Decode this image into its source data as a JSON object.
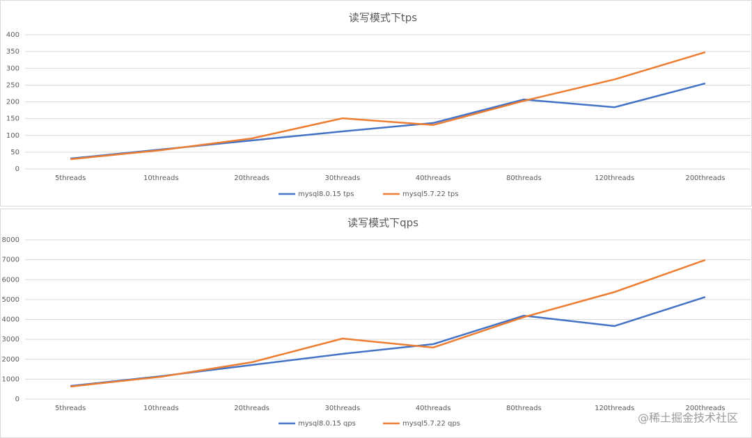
{
  "chart_data": [
    {
      "type": "line",
      "title": "读写模式下tps",
      "categories": [
        "5threads",
        "10threads",
        "20threads",
        "30threads",
        "40threads",
        "80threads",
        "120threads",
        "200threads"
      ],
      "series": [
        {
          "name": "mysql8.0.15 tps",
          "color": "#4472c4",
          "values": [
            31,
            58,
            85,
            112,
            137,
            207,
            184,
            255
          ]
        },
        {
          "name": "mysql5.7.22 tps",
          "color": "#ed7d31",
          "values": [
            29,
            56,
            91,
            151,
            131,
            203,
            267,
            348
          ]
        }
      ],
      "ylim": [
        0,
        400
      ],
      "yticks": [
        0,
        50,
        100,
        150,
        200,
        250,
        300,
        350,
        400
      ],
      "grid": true,
      "legend": "bottom"
    },
    {
      "type": "line",
      "title": "读写模式下qps",
      "categories": [
        "5threads",
        "10threads",
        "20threads",
        "30threads",
        "40threads",
        "80threads",
        "120threads",
        "200threads"
      ],
      "series": [
        {
          "name": "mysql8.0.15 qps",
          "color": "#4472c4",
          "values": [
            660,
            1150,
            1710,
            2270,
            2760,
            4190,
            3670,
            5130
          ]
        },
        {
          "name": "mysql5.7.22 qps",
          "color": "#ed7d31",
          "values": [
            630,
            1120,
            1850,
            3040,
            2590,
            4120,
            5380,
            6990
          ]
        }
      ],
      "ylim": [
        0,
        8000
      ],
      "yticks": [
        0,
        1000,
        2000,
        3000,
        4000,
        5000,
        6000,
        7000,
        8000
      ],
      "grid": true,
      "legend": "bottom"
    }
  ],
  "watermark": "@稀土掘金技术社区"
}
